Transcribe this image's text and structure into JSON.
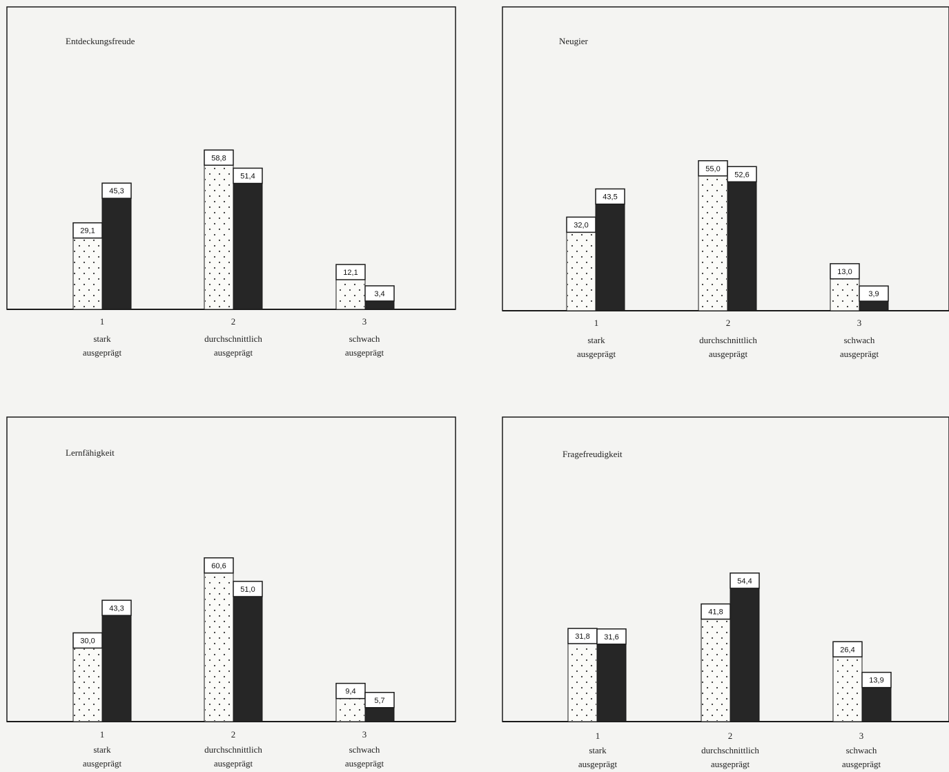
{
  "chart_data": [
    {
      "type": "bar",
      "title": "Entdeckungsfreude",
      "categories": [
        {
          "num": "1",
          "line1": "stark",
          "line2": "ausgeprägt"
        },
        {
          "num": "2",
          "line1": "durchschnittlich",
          "line2": "ausgeprägt"
        },
        {
          "num": "3",
          "line1": "schwach",
          "line2": "ausgeprägt"
        }
      ],
      "series": [
        {
          "labels": [
            "29,1",
            "58,8",
            "12,1"
          ],
          "values": [
            29.1,
            58.8,
            12.1
          ],
          "pattern": "dotted"
        },
        {
          "labels": [
            "45,3",
            "51,4",
            "3,4"
          ],
          "values": [
            45.3,
            51.4,
            3.4
          ],
          "pattern": "dark"
        }
      ],
      "ylim": [
        0,
        70
      ]
    },
    {
      "type": "bar",
      "title": "Neugier",
      "categories": [
        {
          "num": "1",
          "line1": "stark",
          "line2": "ausgeprägt"
        },
        {
          "num": "2",
          "line1": "durchschnittlich",
          "line2": "ausgeprägt"
        },
        {
          "num": "3",
          "line1": "schwach",
          "line2": "ausgeprägt"
        }
      ],
      "series": [
        {
          "labels": [
            "32,0",
            "55,0",
            "13,0"
          ],
          "values": [
            32.0,
            55.0,
            13.0
          ],
          "pattern": "dotted"
        },
        {
          "labels": [
            "43,5",
            "52,6",
            "3,9"
          ],
          "values": [
            43.5,
            52.6,
            3.9
          ],
          "pattern": "dark"
        }
      ],
      "ylim": [
        0,
        70
      ]
    },
    {
      "type": "bar",
      "title": "Lernfähigkeit",
      "categories": [
        {
          "num": "1",
          "line1": "stark",
          "line2": "ausgeprägt"
        },
        {
          "num": "2",
          "line1": "durchschnittlich",
          "line2": "ausgeprägt"
        },
        {
          "num": "3",
          "line1": "schwach",
          "line2": "ausgeprägt"
        }
      ],
      "series": [
        {
          "labels": [
            "30,0",
            "60,6",
            "9,4"
          ],
          "values": [
            30.0,
            60.6,
            9.4
          ],
          "pattern": "dotted"
        },
        {
          "labels": [
            "43,3",
            "51,0",
            "5,7"
          ],
          "values": [
            43.3,
            51.0,
            5.7
          ],
          "pattern": "dark"
        }
      ],
      "ylim": [
        0,
        70
      ]
    },
    {
      "type": "bar",
      "title": "Fragefreudigkeit",
      "categories": [
        {
          "num": "1",
          "line1": "stark",
          "line2": "ausgeprägt"
        },
        {
          "num": "2",
          "line1": "durchschnittlich",
          "line2": "ausgeprägt"
        },
        {
          "num": "3",
          "line1": "schwach",
          "line2": "ausgeprägt"
        }
      ],
      "series": [
        {
          "labels": [
            "31,8",
            "41,8",
            "26,4"
          ],
          "values": [
            31.8,
            41.8,
            26.4
          ],
          "pattern": "dotted"
        },
        {
          "labels": [
            "31,6",
            "54,4",
            "13,9"
          ],
          "values": [
            31.6,
            54.4,
            13.9
          ],
          "pattern": "dark"
        }
      ],
      "ylim": [
        0,
        70
      ]
    }
  ],
  "colors": {
    "frame": "#1a1a1a",
    "dark_bar": "#262626",
    "dotted_fill": "#fbfbf8",
    "dot": "#333333",
    "background": "#f4f4f2"
  }
}
